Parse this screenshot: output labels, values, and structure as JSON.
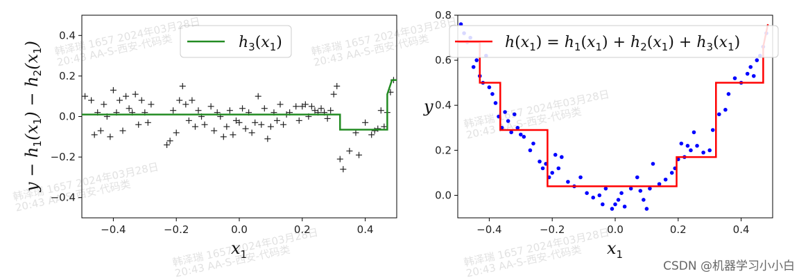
{
  "chart_data": [
    {
      "type": "scatter+step",
      "xlim": [
        -0.5,
        0.5
      ],
      "ylim": [
        -0.5,
        0.5
      ],
      "xticks": [
        -0.4,
        -0.2,
        0.0,
        0.2,
        0.4
      ],
      "xtick_labels": [
        "−0.4",
        "−0.2",
        "0.0",
        "0.2",
        "0.4"
      ],
      "yticks": [
        -0.4,
        -0.2,
        0.0,
        0.2,
        0.4
      ],
      "ytick_labels": [
        "−0.4",
        "−0.2",
        "0.0",
        "0.2",
        "0.4"
      ],
      "grid": false,
      "legend_position": "top-right",
      "legend_label": "h_3(x_1)",
      "xlabel": "x_1",
      "ylabel": "y − h_1(x_1) − h_2(x_1)",
      "line_color": "#228B22",
      "marker_color": "#222222",
      "step_line": {
        "x": [
          -0.5,
          0.32,
          0.32,
          0.47,
          0.47,
          0.485,
          0.5
        ],
        "y": [
          0.01,
          0.01,
          -0.065,
          -0.065,
          0.11,
          0.18,
          0.18
        ]
      },
      "points": {
        "x": [
          -0.49,
          -0.47,
          -0.46,
          -0.45,
          -0.44,
          -0.43,
          -0.42,
          -0.41,
          -0.4,
          -0.39,
          -0.38,
          -0.37,
          -0.36,
          -0.35,
          -0.34,
          -0.33,
          -0.32,
          -0.31,
          -0.3,
          -0.29,
          -0.28,
          -0.23,
          -0.22,
          -0.21,
          -0.2,
          -0.19,
          -0.18,
          -0.17,
          -0.16,
          -0.15,
          -0.14,
          -0.13,
          -0.12,
          -0.11,
          -0.09,
          -0.08,
          -0.07,
          -0.06,
          -0.05,
          -0.04,
          -0.03,
          -0.02,
          -0.01,
          0.0,
          0.01,
          0.02,
          0.03,
          0.04,
          0.05,
          0.06,
          0.07,
          0.08,
          0.09,
          0.1,
          0.11,
          0.12,
          0.13,
          0.14,
          0.15,
          0.16,
          0.18,
          0.19,
          0.2,
          0.21,
          0.22,
          0.23,
          0.24,
          0.25,
          0.26,
          0.27,
          0.28,
          0.29,
          0.3,
          0.31,
          0.32,
          0.33,
          0.35,
          0.37,
          0.38,
          0.4,
          0.42,
          0.43,
          0.44,
          0.45,
          0.46,
          0.47,
          0.48,
          0.49
        ],
        "y": [
          0.1,
          0.08,
          -0.09,
          0.02,
          -0.07,
          0.06,
          0.0,
          -0.1,
          0.13,
          0.02,
          0.08,
          -0.07,
          0.1,
          0.04,
          0.02,
          0.11,
          -0.04,
          0.08,
          0.02,
          -0.03,
          0.06,
          -0.14,
          -0.12,
          0.03,
          -0.08,
          0.08,
          0.15,
          0.06,
          -0.02,
          0.08,
          -0.05,
          0.03,
          0.0,
          -0.04,
          0.05,
          -0.07,
          0.02,
          0.0,
          -0.1,
          -0.05,
          0.03,
          -0.09,
          -0.02,
          -0.03,
          0.04,
          -0.06,
          0.02,
          -0.08,
          -0.03,
          0.1,
          -0.04,
          0.04,
          -0.11,
          -0.05,
          0.02,
          -0.02,
          0.06,
          -0.04,
          0.01,
          0.02,
          0.05,
          -0.02,
          0.05,
          0.06,
          0.0,
          0.05,
          0.03,
          0.02,
          0.04,
          0.02,
          -0.01,
          0.03,
          0.11,
          0.15,
          -0.21,
          -0.26,
          -0.17,
          -0.08,
          -0.19,
          -0.03,
          -0.09,
          -0.07,
          -0.06,
          0.03,
          -0.05,
          0.02,
          0.12,
          0.18
        ]
      }
    },
    {
      "type": "scatter+step",
      "xlim": [
        -0.5,
        0.5
      ],
      "ylim": [
        -0.1,
        0.8
      ],
      "xticks": [
        -0.4,
        -0.2,
        0.0,
        0.2,
        0.4
      ],
      "xtick_labels": [
        "−0.4",
        "−0.2",
        "0.0",
        "0.2",
        "0.4"
      ],
      "yticks": [
        0.0,
        0.2,
        0.4,
        0.6,
        0.8
      ],
      "ytick_labels": [
        "0.0",
        "0.2",
        "0.4",
        "0.6",
        "0.8"
      ],
      "grid": false,
      "legend_position": "top-right",
      "legend_label": "h(x_1) = h_1(x_1) + h_2(x_1) + h_3(x_1)",
      "xlabel": "x_1",
      "ylabel": "y",
      "line_color": "#ff0000",
      "marker_color": "#0000ff",
      "step_line": {
        "x": [
          -0.5,
          -0.43,
          -0.43,
          -0.365,
          -0.365,
          -0.215,
          -0.215,
          0.195,
          0.195,
          0.32,
          0.32,
          0.47,
          0.47,
          0.485
        ],
        "y": [
          0.68,
          0.68,
          0.5,
          0.5,
          0.29,
          0.29,
          0.04,
          0.04,
          0.17,
          0.17,
          0.5,
          0.5,
          0.66,
          0.76
        ]
      },
      "points": {
        "x": [
          -0.49,
          -0.48,
          -0.47,
          -0.46,
          -0.45,
          -0.44,
          -0.43,
          -0.42,
          -0.41,
          -0.4,
          -0.39,
          -0.38,
          -0.37,
          -0.36,
          -0.35,
          -0.34,
          -0.33,
          -0.32,
          -0.31,
          -0.3,
          -0.29,
          -0.27,
          -0.26,
          -0.24,
          -0.23,
          -0.22,
          -0.21,
          -0.2,
          -0.19,
          -0.18,
          -0.17,
          -0.15,
          -0.13,
          -0.11,
          -0.09,
          -0.07,
          -0.05,
          -0.04,
          -0.03,
          -0.01,
          0.0,
          0.01,
          0.02,
          0.03,
          0.05,
          0.07,
          0.08,
          0.09,
          0.1,
          0.11,
          0.12,
          0.14,
          0.16,
          0.18,
          0.19,
          0.2,
          0.21,
          0.22,
          0.23,
          0.24,
          0.25,
          0.26,
          0.28,
          0.3,
          0.31,
          0.33,
          0.35,
          0.36,
          0.38,
          0.4,
          0.42,
          0.43,
          0.44,
          0.45,
          0.46,
          0.47,
          0.48
        ],
        "y": [
          0.76,
          0.72,
          0.68,
          0.7,
          0.57,
          0.6,
          0.53,
          0.5,
          0.62,
          0.48,
          0.45,
          0.41,
          0.35,
          0.3,
          0.37,
          0.33,
          0.28,
          0.36,
          0.3,
          0.27,
          0.26,
          0.2,
          0.23,
          0.15,
          0.12,
          0.14,
          0.08,
          0.1,
          0.18,
          0.12,
          0.17,
          0.06,
          0.04,
          0.08,
          0.01,
          -0.01,
          0.0,
          -0.04,
          0.03,
          -0.06,
          -0.04,
          -0.02,
          0.01,
          -0.05,
          0.03,
          0.08,
          0.02,
          -0.02,
          -0.06,
          0.03,
          0.14,
          0.05,
          0.07,
          0.1,
          0.12,
          0.16,
          0.23,
          0.17,
          0.22,
          0.2,
          0.28,
          0.22,
          0.19,
          0.2,
          0.29,
          0.36,
          0.38,
          0.45,
          0.52,
          0.5,
          0.54,
          0.57,
          0.53,
          0.6,
          0.62,
          0.66,
          0.72
        ]
      }
    }
  ],
  "watermark": {
    "name": "韩泽瑞 1657 2024年03月28日",
    "detail": "20:43 AA-S-西安-代码类",
    "credit": "CSDN @机器学习小小白"
  }
}
